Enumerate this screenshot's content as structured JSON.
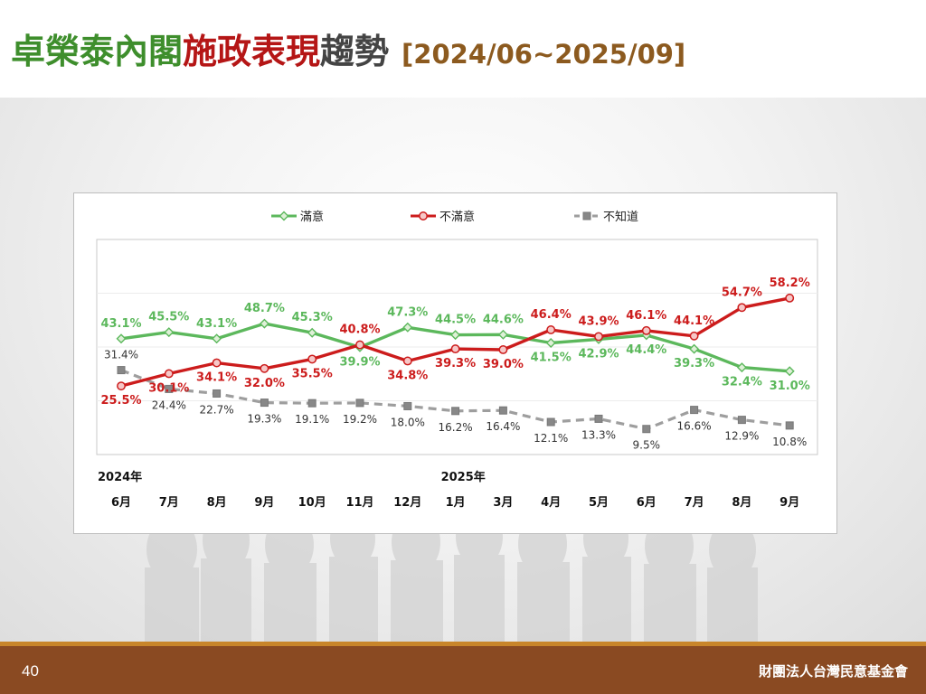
{
  "title": {
    "part1": "卓榮泰內閣",
    "part2": "施政表現",
    "part3": "趨勢",
    "range": "[2024/06~2025/09]"
  },
  "footer": {
    "page_number": "40",
    "organization": "財團法人台灣民意基金會"
  },
  "chart_data": {
    "type": "line",
    "title": "",
    "xlabel": "",
    "ylabel": "",
    "year_labels": [
      {
        "text": "2024年",
        "at_index": 0
      },
      {
        "text": "2025年",
        "at_index": 7
      }
    ],
    "categories": [
      "6月",
      "7月",
      "8月",
      "9月",
      "10月",
      "11月",
      "12月",
      "1月",
      "3月",
      "4月",
      "5月",
      "6月",
      "7月",
      "8月",
      "9月"
    ],
    "ylim": [
      0,
      80
    ],
    "grid": "horizontal",
    "legend_position": "top",
    "series": [
      {
        "name": "滿意",
        "color": "#5cb85c",
        "style": "solid",
        "marker": "diamond",
        "values": [
          43.1,
          45.5,
          43.1,
          48.7,
          45.3,
          39.9,
          47.3,
          44.5,
          44.6,
          41.5,
          42.9,
          44.4,
          39.3,
          32.4,
          31.0
        ],
        "labels": [
          "43.1%",
          "45.5%",
          "43.1%",
          "48.7%",
          "45.3%",
          "39.9%",
          "47.3%",
          "44.5%",
          "44.6%",
          "41.5%",
          "42.9%",
          "44.4%",
          "39.3%",
          "32.4%",
          "31.0%"
        ]
      },
      {
        "name": "不滿意",
        "color": "#cc1c1c",
        "style": "solid",
        "marker": "circle",
        "values": [
          25.5,
          30.1,
          34.1,
          32.0,
          35.5,
          40.8,
          34.8,
          39.3,
          39.0,
          46.4,
          43.9,
          46.1,
          44.1,
          54.7,
          58.2
        ],
        "labels": [
          "25.5%",
          "30.1%",
          "34.1%",
          "32.0%",
          "35.5%",
          "40.8%",
          "34.8%",
          "39.3%",
          "39.0%",
          "46.4%",
          "43.9%",
          "46.1%",
          "44.1%",
          "54.7%",
          "58.2%"
        ]
      },
      {
        "name": "不知道",
        "color": "#9e9e9e",
        "style": "dashed",
        "marker": "square",
        "values": [
          31.4,
          24.4,
          22.7,
          19.3,
          19.1,
          19.2,
          18.0,
          16.2,
          16.4,
          12.1,
          13.3,
          9.5,
          16.6,
          12.9,
          10.8
        ],
        "labels": [
          "31.4%",
          "24.4%",
          "22.7%",
          "19.3%",
          "19.1%",
          "19.2%",
          "18.0%",
          "16.2%",
          "16.4%",
          "12.1%",
          "13.3%",
          "9.5%",
          "16.6%",
          "12.9%",
          "10.8%"
        ]
      }
    ]
  }
}
